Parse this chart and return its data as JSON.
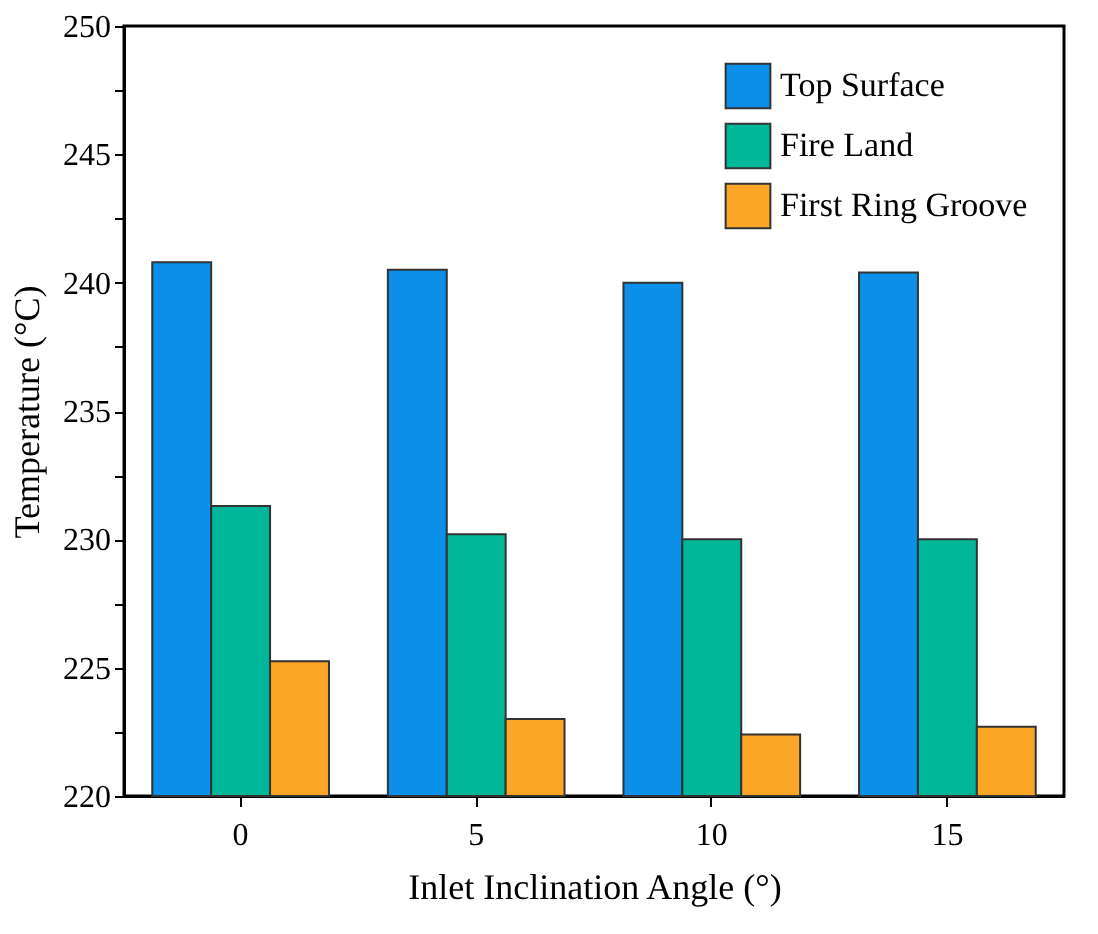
{
  "chart_data": {
    "type": "bar",
    "xlabel": "Inlet Inclination Angle (°)",
    "ylabel": "Temperature (°C)",
    "categories": [
      "0",
      "5",
      "10",
      "15"
    ],
    "series": [
      {
        "name": "Top Surface",
        "color": "#0a90e8",
        "values": [
          240.8,
          240.5,
          240.0,
          240.4
        ]
      },
      {
        "name": "Fire Land",
        "color": "#00b899",
        "values": [
          231.3,
          230.2,
          230.0,
          230.0
        ]
      },
      {
        "name": "First Ring Groove",
        "color": "#fca628",
        "values": [
          225.25,
          223.0,
          222.4,
          222.7
        ]
      }
    ],
    "ylim": [
      220,
      250
    ],
    "yticks": [
      220,
      {
        "value": 222.5,
        "label": null
      },
      225,
      {
        "value": 227.5,
        "label": null
      },
      230,
      {
        "value": 232.5,
        "label": null
      },
      235,
      {
        "value": 237.5,
        "label": null
      },
      240,
      {
        "value": 242.5,
        "label": null
      },
      245,
      {
        "value": 247.5,
        "label": null
      },
      250
    ],
    "grid": false,
    "legend": "top right"
  }
}
